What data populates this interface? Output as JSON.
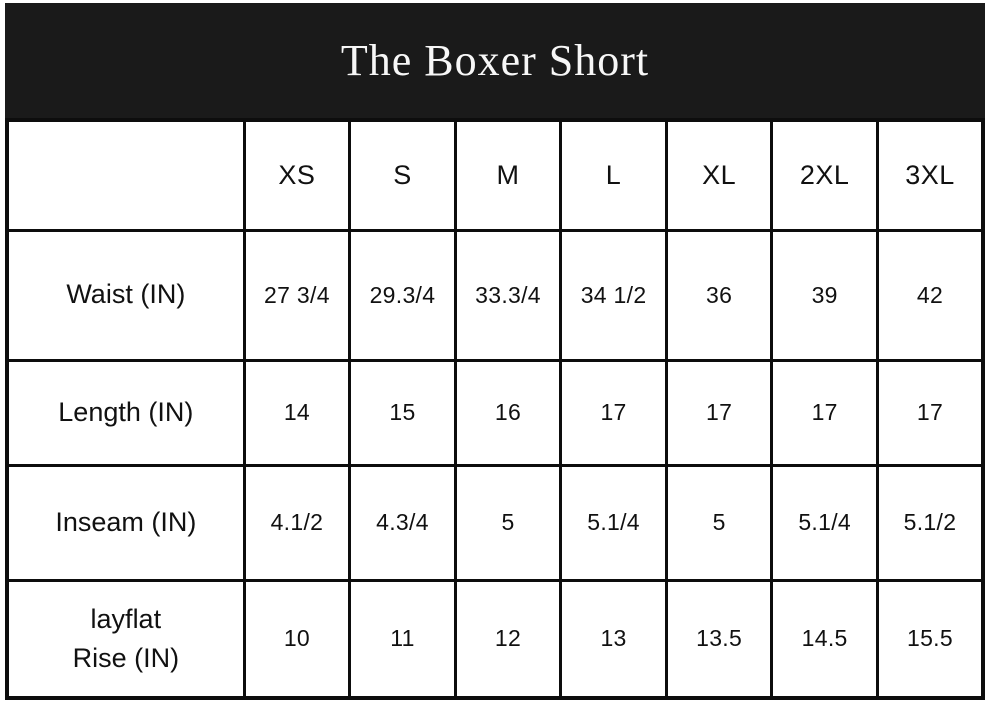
{
  "title": "The Boxer Short",
  "colors": {
    "header-bg": "#1a1a1a",
    "header-text": "#f7f7f7",
    "border": "#0d0d0d",
    "cell-bg": "#ffffff",
    "text": "#111111"
  },
  "chart_data": {
    "type": "table",
    "title": "The Boxer Short",
    "columns": [
      "",
      "XS",
      "S",
      "M",
      "L",
      "XL",
      "2XL",
      "3XL"
    ],
    "rows": [
      {
        "label": "Waist (IN)",
        "values": [
          "27 3/4",
          "29.3/4",
          "33.3/4",
          "34 1/2",
          "36",
          "39",
          "42"
        ]
      },
      {
        "label": "Length (IN)",
        "values": [
          "14",
          "15",
          "16",
          "17",
          "17",
          "17",
          "17"
        ]
      },
      {
        "label": "Inseam (IN)",
        "values": [
          "4.1/2",
          "4.3/4",
          "5",
          "5.1/4",
          "5",
          "5.1/4",
          "5.1/2"
        ]
      },
      {
        "label": "layflat\nRise (IN)",
        "values": [
          "10",
          "11",
          "12",
          "13",
          "13.5",
          "14.5",
          "15.5"
        ]
      }
    ]
  }
}
